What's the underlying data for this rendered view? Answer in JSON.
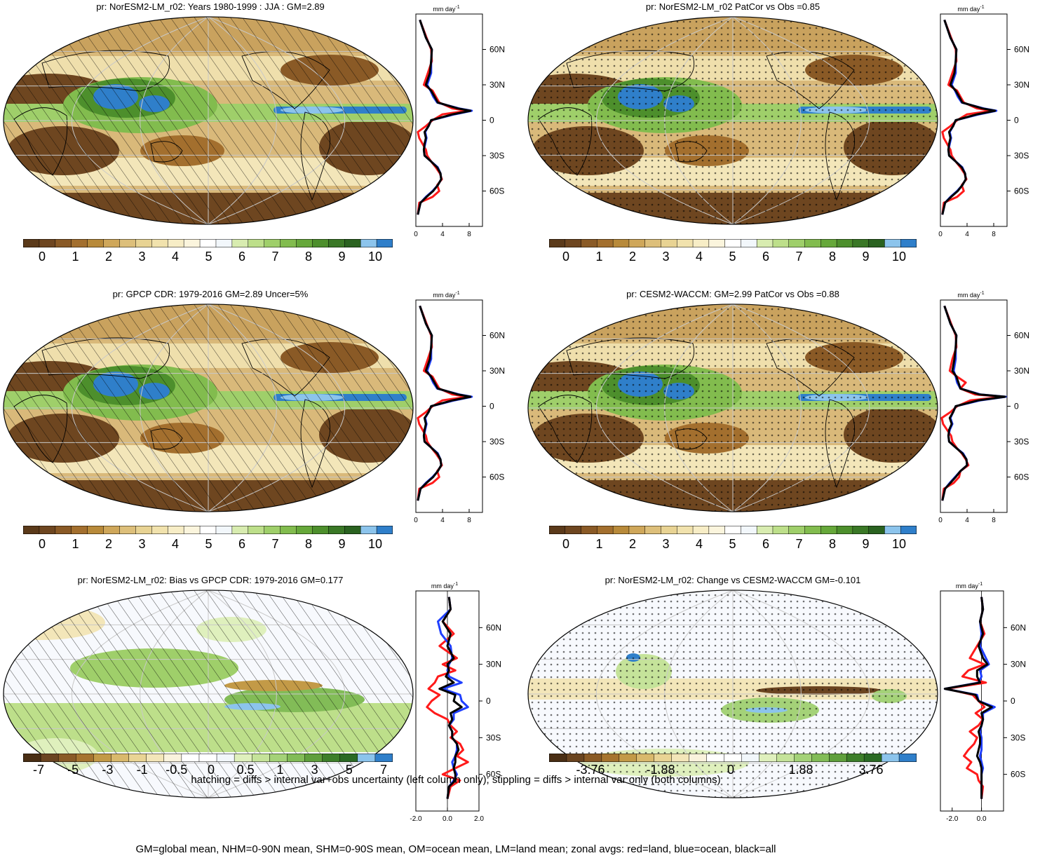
{
  "panels": [
    {
      "id": "p1",
      "title": "pr: NorESM2-LM_r02: Years 1980-1999 : JJA : GM=2.89",
      "palette": "abs",
      "hatch": "hatch",
      "zonal": "abs"
    },
    {
      "id": "p2",
      "title": "pr: NorESM2-LM_r02 PatCor vs Obs =0.85",
      "palette": "abs",
      "hatch": "dots",
      "zonal": "abs"
    },
    {
      "id": "p3",
      "title": "pr: GPCP CDR: 1979-2016 GM=2.89 Uncer=5%",
      "palette": "abs",
      "hatch": "hatch",
      "zonal": "abs"
    },
    {
      "id": "p4",
      "title": "pr: CESM2-WACCM: GM=2.99 PatCor vs Obs =0.88",
      "palette": "abs",
      "hatch": "dots",
      "zonal": "abs2"
    },
    {
      "id": "p5",
      "title": "pr: NorESM2-LM_r02: Bias vs GPCP CDR: 1979-2016 GM=0.177",
      "palette": "diff",
      "hatch": "hatch",
      "zonal": "bias"
    },
    {
      "id": "p6",
      "title": "pr: NorESM2-LM_r02: Change vs CESM2-WACCM GM=-0.101",
      "palette": "diff",
      "hatch": "dots",
      "zonal": "change"
    }
  ],
  "colorbars": {
    "absolute": {
      "labels": [
        "0",
        "1",
        "2",
        "3",
        "4",
        "5",
        "6",
        "7",
        "8",
        "9",
        "10"
      ]
    },
    "bias": {
      "labels": [
        "-7",
        "-5",
        "-3",
        "-1",
        "-0.5",
        "0",
        "0.5",
        "1",
        "3",
        "5",
        "7"
      ]
    },
    "change": {
      "labels": [
        "-3.76",
        "-1.88",
        "0",
        "1.88",
        "3.76"
      ]
    }
  },
  "zonal_axes": {
    "unit": "mm day",
    "unit_exp": "-1",
    "lat_labels": [
      "60N",
      "30N",
      "0",
      "30S",
      "60S"
    ],
    "abs_x_ticks": [
      "0",
      "4",
      "8"
    ],
    "diff_x_ticks": [
      "-2.0",
      "0.0",
      "2.0"
    ],
    "change_x_ticks": [
      "-2.0",
      "0.0"
    ]
  },
  "chart_data": {
    "type": "line",
    "y_axis": "latitude",
    "series_colors": {
      "land": "#ff1a1a",
      "ocean": "#1f3fff",
      "all": "#000000"
    },
    "zonal_profiles": {
      "abs": {
        "lat": [
          85,
          70,
          60,
          50,
          40,
          30,
          25,
          20,
          15,
          10,
          8,
          5,
          0,
          -5,
          -10,
          -15,
          -20,
          -25,
          -30,
          -35,
          -40,
          -45,
          -50,
          -55,
          -60,
          -65,
          -70,
          -80
        ],
        "land": [
          0.6,
          1.6,
          2.3,
          2.4,
          1.8,
          1.2,
          2.5,
          3.0,
          3.5,
          5.5,
          7.8,
          4.0,
          2.5,
          1.5,
          0.3,
          0.5,
          1.0,
          1.5,
          1.7,
          2.3,
          3.0,
          3.6,
          3.9,
          3.2,
          3.5,
          2.5,
          0.5,
          0.3
        ],
        "ocean": [
          0.6,
          1.5,
          2.4,
          2.3,
          2.3,
          1.7,
          2.2,
          2.6,
          3.2,
          6.5,
          8.4,
          5.8,
          2.3,
          1.9,
          1.4,
          1.6,
          1.4,
          1.2,
          1.3,
          2.3,
          3.3,
          3.7,
          3.8,
          3.3,
          2.5,
          1.5,
          0.7,
          0.3
        ],
        "all": [
          0.6,
          1.5,
          2.4,
          2.3,
          2.1,
          1.5,
          2.3,
          2.8,
          3.3,
          6.3,
          8.2,
          5.5,
          2.3,
          1.9,
          1.3,
          1.5,
          1.3,
          1.2,
          1.3,
          2.3,
          3.2,
          3.7,
          3.8,
          3.3,
          2.6,
          1.6,
          0.7,
          0.3
        ]
      },
      "abs2": {
        "lat": [
          85,
          70,
          60,
          50,
          40,
          30,
          25,
          20,
          15,
          10,
          8,
          5,
          0,
          -5,
          -10,
          -15,
          -20,
          -25,
          -30,
          -35,
          -40,
          -45,
          -50,
          -55,
          -60,
          -65,
          -70,
          -80
        ],
        "land": [
          0.6,
          1.6,
          2.3,
          2.4,
          1.8,
          1.4,
          2.5,
          3.8,
          3.0,
          5.2,
          9.5,
          4.5,
          2.5,
          1.5,
          0.2,
          0.4,
          1.0,
          1.6,
          1.8,
          2.4,
          3.2,
          3.8,
          4.2,
          3.0,
          2.8,
          2.0,
          0.5,
          0.3
        ],
        "ocean": [
          0.6,
          1.5,
          2.4,
          2.3,
          2.3,
          2.0,
          2.3,
          2.5,
          3.0,
          6.0,
          9.8,
          6.0,
          2.3,
          1.9,
          1.5,
          1.8,
          1.4,
          1.2,
          1.3,
          2.3,
          3.4,
          3.9,
          4.0,
          3.0,
          2.2,
          1.4,
          0.7,
          0.3
        ],
        "all": [
          0.6,
          1.5,
          2.4,
          2.3,
          2.1,
          1.8,
          2.4,
          2.7,
          3.0,
          5.8,
          9.7,
          5.7,
          2.3,
          1.9,
          1.4,
          1.7,
          1.3,
          1.2,
          1.3,
          2.3,
          3.3,
          3.9,
          4.0,
          3.0,
          2.3,
          1.5,
          0.7,
          0.3
        ]
      },
      "bias": {
        "lat": [
          85,
          75,
          65,
          55,
          45,
          35,
          30,
          25,
          20,
          15,
          10,
          5,
          0,
          -5,
          -10,
          -15,
          -20,
          -25,
          -30,
          -35,
          -40,
          -45,
          -50,
          -55,
          -60,
          -65,
          -70,
          -80
        ],
        "land": [
          0.1,
          0.2,
          -0.3,
          0.4,
          -0.5,
          0.6,
          -0.3,
          0.5,
          -0.6,
          -0.8,
          -1.2,
          -0.5,
          -1.0,
          -1.3,
          -0.8,
          0.0,
          0.2,
          0.6,
          0.2,
          0.8,
          1.0,
          0.6,
          1.3,
          0.5,
          -0.3,
          0.8,
          0.2,
          0.0
        ],
        "ocean": [
          0.1,
          0.2,
          -0.6,
          -0.4,
          0.2,
          0.3,
          0.1,
          0.0,
          0.1,
          0.9,
          -0.3,
          0.8,
          0.9,
          1.3,
          0.4,
          0.4,
          0.1,
          0.3,
          0.3,
          0.6,
          0.6,
          0.5,
          0.3,
          0.4,
          0.6,
          0.4,
          0.1,
          0.0
        ],
        "all": [
          0.1,
          0.2,
          -0.3,
          0.2,
          0.0,
          0.4,
          0.0,
          0.1,
          -0.1,
          0.4,
          -0.5,
          0.5,
          0.4,
          0.9,
          0.2,
          0.3,
          0.1,
          0.3,
          0.3,
          0.6,
          0.7,
          0.5,
          0.5,
          0.4,
          0.5,
          0.5,
          0.1,
          0.0
        ]
      },
      "change": {
        "lat": [
          85,
          75,
          65,
          55,
          45,
          35,
          30,
          25,
          20,
          15,
          10,
          5,
          0,
          -5,
          -10,
          -15,
          -20,
          -25,
          -30,
          -35,
          -40,
          -45,
          -50,
          -55,
          -60,
          -65,
          -70,
          -80
        ],
        "land": [
          0.0,
          0.1,
          -0.1,
          0.2,
          -0.3,
          -0.8,
          0.2,
          -0.9,
          -1.3,
          0.3,
          -2.4,
          -0.6,
          -0.2,
          0.2,
          -0.4,
          0.1,
          -0.2,
          -0.8,
          -0.3,
          -0.5,
          -0.9,
          -1.2,
          -0.7,
          -1.0,
          -0.3,
          -0.2,
          0.1,
          0.0
        ],
        "ocean": [
          0.0,
          0.1,
          -0.1,
          0.0,
          -0.1,
          0.3,
          0.5,
          -0.1,
          0.0,
          -0.2,
          -2.5,
          -0.3,
          -0.2,
          0.9,
          0.1,
          0.1,
          0.0,
          -0.1,
          0.0,
          0.0,
          0.0,
          -0.1,
          0.0,
          0.1,
          0.0,
          0.0,
          0.0,
          0.0
        ],
        "all": [
          0.0,
          0.1,
          -0.1,
          0.1,
          -0.2,
          0.1,
          0.4,
          -0.3,
          -0.3,
          -0.1,
          -2.5,
          -0.4,
          -0.2,
          0.7,
          0.0,
          0.1,
          0.0,
          -0.2,
          -0.1,
          -0.1,
          -0.2,
          -0.3,
          -0.1,
          0.0,
          0.0,
          0.0,
          0.0,
          0.0
        ]
      }
    }
  },
  "caption": {
    "line1": "hatching = diffs > internal var+obs uncertainty (left column only); stippling = diffs > internal var only (both columns)",
    "line2": "GM=global mean, NHM=0-90N mean, SHM=0-90S mean, OM=ocean mean, LM=land mean; zonal avgs: red=land, blue=ocean, black=all"
  }
}
